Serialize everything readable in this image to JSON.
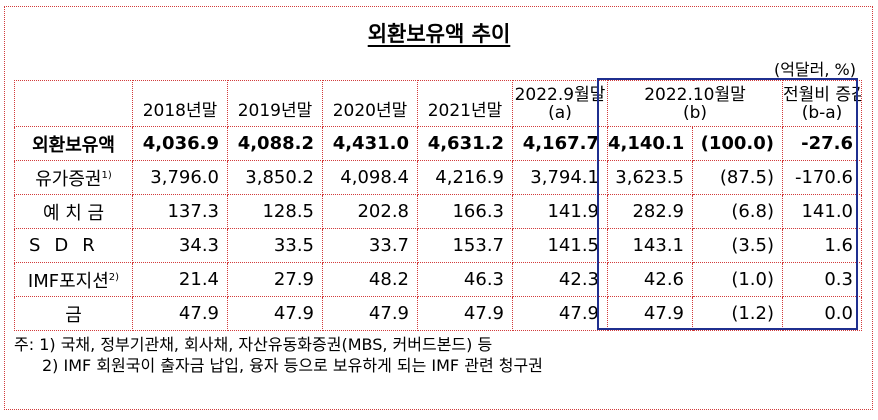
{
  "title": "외환보유액 추이",
  "unit": "(억달러, %)",
  "columns": [
    {
      "line1": "",
      "line2": ""
    },
    {
      "line1": "2018년말",
      "line2": ""
    },
    {
      "line1": "2019년말",
      "line2": ""
    },
    {
      "line1": "2020년말",
      "line2": ""
    },
    {
      "line1": "2021년말",
      "line2": ""
    },
    {
      "line1": "2022.9월말",
      "line2": "(a)"
    },
    {
      "line1": "2022.10월말",
      "line2": "(b)"
    },
    {
      "line1": "",
      "line2": ""
    },
    {
      "line1": "전월비 증감",
      "line2": "(b-a)"
    }
  ],
  "rows": [
    {
      "label": "외환보유액",
      "sup": "",
      "values": [
        "4,036.9",
        "4,088.2",
        "4,431.0",
        "4,631.2",
        "4,167.7",
        "4,140.1",
        "(100.0)",
        "-27.6"
      ]
    },
    {
      "label": "유가증권",
      "sup": "1)",
      "values": [
        "3,796.0",
        "3,850.2",
        "4,098.4",
        "4,216.9",
        "3,794.1",
        "3,623.5",
        "(87.5)",
        "-170.6"
      ]
    },
    {
      "label": "예 치 금",
      "sup": "",
      "values": [
        "137.3",
        "128.5",
        "202.8",
        "166.3",
        "141.9",
        "282.9",
        "(6.8)",
        "141.0"
      ]
    },
    {
      "label": "SDR",
      "sup": "",
      "values": [
        "34.3",
        "33.5",
        "33.7",
        "153.7",
        "141.5",
        "143.1",
        "(3.5)",
        "1.6"
      ]
    },
    {
      "label": "IMF포지션",
      "sup": "2)",
      "values": [
        "21.4",
        "27.9",
        "48.2",
        "46.3",
        "42.3",
        "42.6",
        "(1.0)",
        "0.3"
      ]
    },
    {
      "label": "금",
      "sup": "",
      "values": [
        "47.9",
        "47.9",
        "47.9",
        "47.9",
        "47.9",
        "47.9",
        "(1.2)",
        "0.0"
      ]
    }
  ],
  "notes": {
    "n1": "주: 1) 국채, 정부기관채, 회사채, 자산유동화증권(MBS, 커버드본드) 등",
    "n2": "2) IMF 회원국이 출자금 납입, 융자 등으로 보유하게 되는 IMF 관련 청구권"
  }
}
